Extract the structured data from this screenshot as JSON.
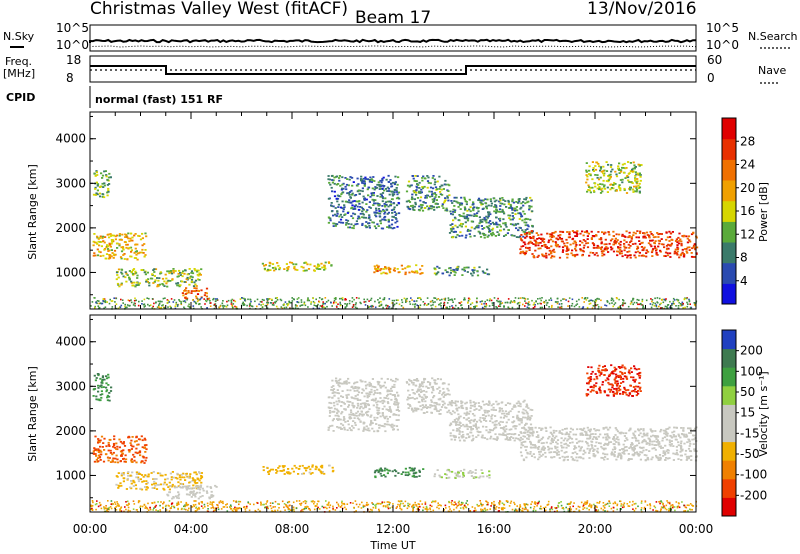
{
  "header": {
    "station_title": "Christmas Valley West (fitACF)",
    "beam": "Beam 17",
    "date": "13/Nov/2016"
  },
  "strip_panels": {
    "nsky_label": "N.Sky",
    "nsky_ticks": [
      "10^5",
      "10^0"
    ],
    "nsearch_label": "N.Search",
    "nsearch_ticks": [
      "10^5",
      "10^0"
    ],
    "freq_label_line1": "Freq.",
    "freq_label_line2": "[MHz]",
    "freq_ticks": [
      "18",
      "8"
    ],
    "nave_label": "Nave",
    "nave_ticks": [
      "60",
      "0"
    ],
    "cpid_label": "CPID",
    "cpid_text": "normal (fast) 151 RF"
  },
  "colors": {
    "power_scale": [
      "#1010e0",
      "#2a4ab0",
      "#3a7a6a",
      "#5aaa3a",
      "#d6d600",
      "#f0a000",
      "#f07000",
      "#e83000",
      "#e00000"
    ],
    "velocity_scale": [
      "#e00000",
      "#f04000",
      "#f08000",
      "#f0b000",
      "#c8c8c0",
      "#c8c8c0",
      "#90d040",
      "#3ea040",
      "#3e7a50",
      "#2040c0"
    ],
    "noise_bottom": "#2e7d32"
  },
  "chart_data": [
    {
      "type": "heatmap",
      "panel": "power",
      "ylabel": "Slant Range [km]",
      "ylim": [
        180,
        4600
      ],
      "y_ticks": [
        "1000",
        "2000",
        "3000",
        "4000"
      ],
      "x_ticks": [
        "00:00",
        "04:00",
        "08:00",
        "12:00",
        "16:00",
        "20:00",
        "00:00"
      ],
      "colorbar_label": "Power [dB]",
      "colorbar_ticks": [
        "4",
        "8",
        "12",
        "16",
        "20",
        "24",
        "28"
      ],
      "regions": [
        {
          "x": [
            0.1,
            2.2
          ],
          "y": [
            1300,
            1900
          ],
          "value": 18
        },
        {
          "x": [
            1.0,
            4.4
          ],
          "y": [
            700,
            1100
          ],
          "value": 14
        },
        {
          "x": [
            3.6,
            4.6
          ],
          "y": [
            430,
            700
          ],
          "value": 24
        },
        {
          "x": [
            6.8,
            9.6
          ],
          "y": [
            1050,
            1250
          ],
          "value": 16
        },
        {
          "x": [
            11.2,
            13.2
          ],
          "y": [
            980,
            1200
          ],
          "value": 20
        },
        {
          "x": [
            13.6,
            15.8
          ],
          "y": [
            950,
            1150
          ],
          "value": 10
        },
        {
          "x": [
            9.4,
            12.2
          ],
          "y": [
            2000,
            3200
          ],
          "value": 8
        },
        {
          "x": [
            12.5,
            14.2
          ],
          "y": [
            2400,
            3200
          ],
          "value": 10
        },
        {
          "x": [
            14.2,
            17.5
          ],
          "y": [
            1800,
            2700
          ],
          "value": 10
        },
        {
          "x": [
            17.0,
            24.0
          ],
          "y": [
            1350,
            1950
          ],
          "value": 26
        },
        {
          "x": [
            19.6,
            21.8
          ],
          "y": [
            2800,
            3500
          ],
          "value": 14
        },
        {
          "x": [
            0.1,
            0.8
          ],
          "y": [
            2700,
            3300
          ],
          "value": 12
        }
      ],
      "noise_band": {
        "x": [
          0,
          24
        ],
        "y": [
          200,
          450
        ]
      }
    },
    {
      "type": "heatmap",
      "panel": "velocity",
      "ylabel": "Slant Range [km]",
      "ylim": [
        180,
        4600
      ],
      "y_ticks": [
        "1000",
        "2000",
        "3000",
        "4000"
      ],
      "x_ticks": [
        "00:00",
        "04:00",
        "08:00",
        "12:00",
        "16:00",
        "20:00",
        "00:00"
      ],
      "xlabel": "Time UT",
      "colorbar_label": "Velocity [m s⁻¹]",
      "colorbar_ticks": [
        "200",
        "100",
        "50",
        "15",
        "-15",
        "-50",
        "-100",
        "-200"
      ],
      "regions": [
        {
          "x": [
            0.1,
            2.2
          ],
          "y": [
            1300,
            1900
          ],
          "value": -160
        },
        {
          "x": [
            1.0,
            4.4
          ],
          "y": [
            700,
            1100
          ],
          "value": -60
        },
        {
          "x": [
            3.0,
            5.0
          ],
          "y": [
            500,
            800
          ],
          "value": 0
        },
        {
          "x": [
            6.8,
            9.6
          ],
          "y": [
            1050,
            1250
          ],
          "value": -70
        },
        {
          "x": [
            11.2,
            13.2
          ],
          "y": [
            980,
            1200
          ],
          "value": 150
        },
        {
          "x": [
            13.6,
            15.8
          ],
          "y": [
            950,
            1150
          ],
          "value": 40
        },
        {
          "x": [
            9.4,
            12.2
          ],
          "y": [
            2000,
            3200
          ],
          "value": 0
        },
        {
          "x": [
            12.5,
            14.2
          ],
          "y": [
            2400,
            3200
          ],
          "value": 0
        },
        {
          "x": [
            14.2,
            17.5
          ],
          "y": [
            1800,
            2700
          ],
          "value": 0
        },
        {
          "x": [
            17.0,
            24.0
          ],
          "y": [
            1350,
            2100
          ],
          "value": 0
        },
        {
          "x": [
            19.6,
            21.8
          ],
          "y": [
            2800,
            3500
          ],
          "value": -200
        },
        {
          "x": [
            0.1,
            0.8
          ],
          "y": [
            2700,
            3300
          ],
          "value": 150
        }
      ],
      "noise_band": {
        "x": [
          0,
          24
        ],
        "y": [
          200,
          450
        ]
      }
    }
  ]
}
